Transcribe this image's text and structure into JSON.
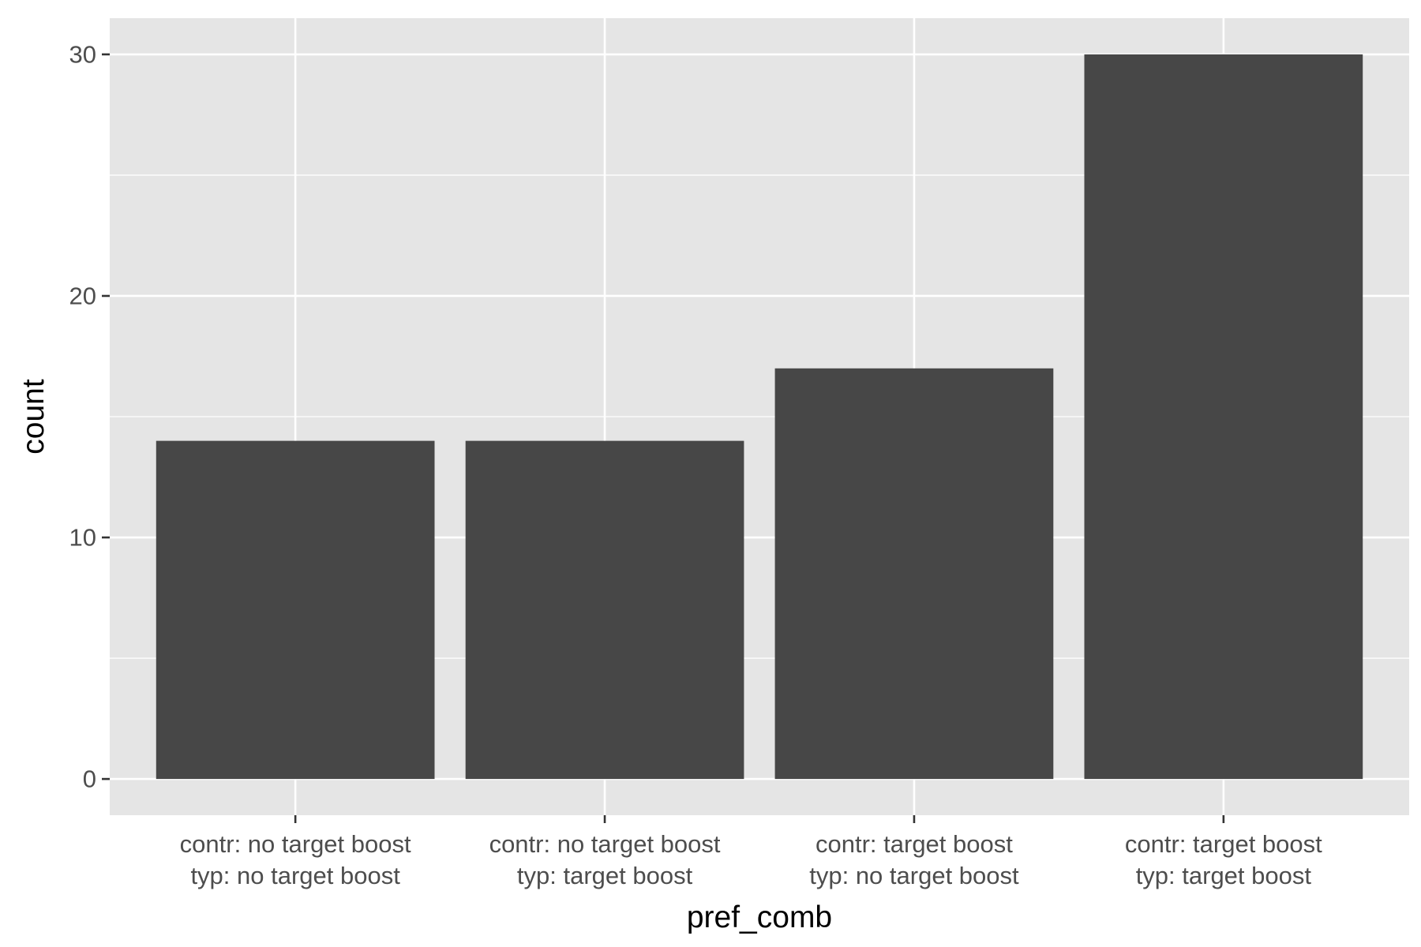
{
  "chart_data": {
    "type": "bar",
    "title": "",
    "xlabel": "pref_comb",
    "ylabel": "count",
    "categories": [
      [
        "contr: no target boost",
        "typ: no target boost"
      ],
      [
        "contr: no target boost",
        "typ: target boost"
      ],
      [
        "contr: target boost",
        "typ: no target boost"
      ],
      [
        "contr: target boost",
        "typ: target boost"
      ]
    ],
    "values": [
      14,
      14,
      17,
      30
    ],
    "ylim": [
      -1.5,
      31.5
    ],
    "yticks": [
      0,
      10,
      20,
      30
    ],
    "grid": true,
    "legend": "none",
    "colors": {
      "panel_background": "#e5e5e5",
      "grid_line": "#ffffff",
      "bar_fill": "#474747",
      "tick_mark": "#333333",
      "tick_text": "#4d4d4d",
      "axis_title": "#000000"
    }
  }
}
